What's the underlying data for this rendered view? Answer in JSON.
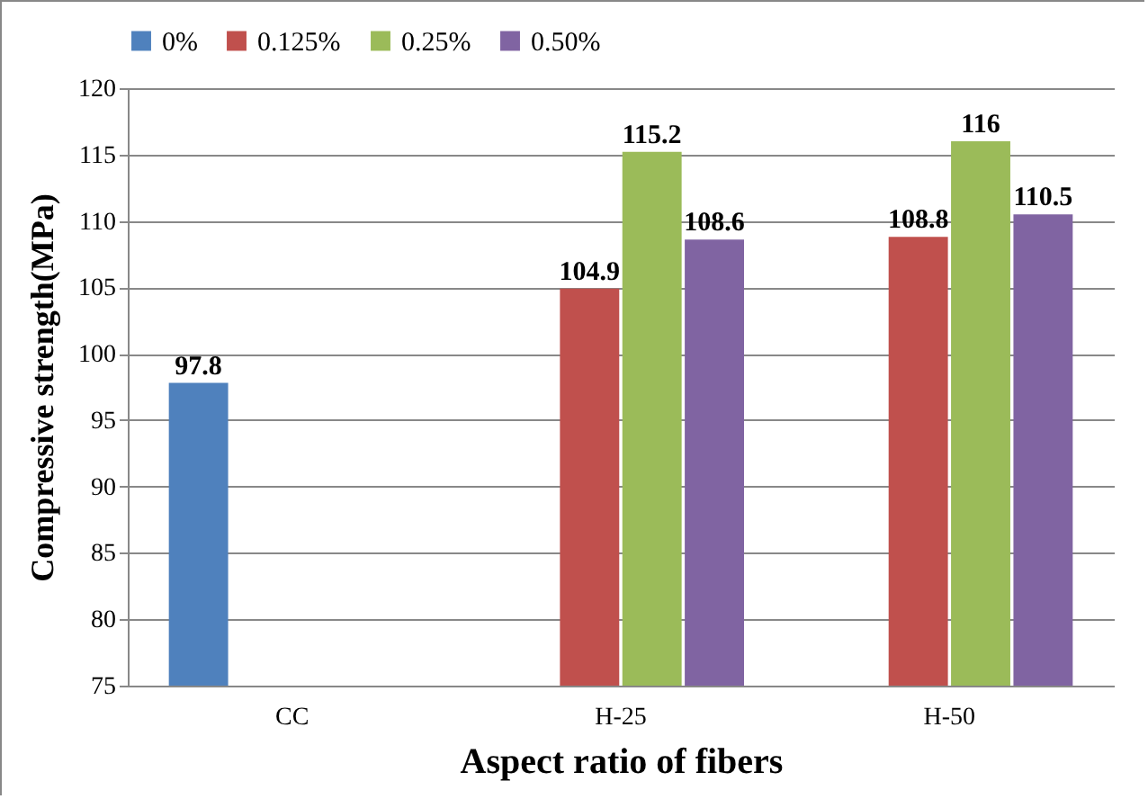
{
  "chart_data": {
    "type": "bar",
    "xlabel": "Aspect ratio of fibers",
    "ylabel": "Compressive strength(MPa)",
    "categories": [
      "CC",
      "H-25",
      "H-50"
    ],
    "series": [
      {
        "name": "0%",
        "color": "#4f81bd",
        "values": [
          97.8,
          null,
          null
        ]
      },
      {
        "name": "0.125%",
        "color": "#c0504d",
        "values": [
          null,
          104.9,
          108.8
        ]
      },
      {
        "name": "0.25%",
        "color": "#9bbb59",
        "values": [
          null,
          115.2,
          116
        ]
      },
      {
        "name": "0.50%",
        "color": "#8064a2",
        "values": [
          null,
          108.6,
          110.5
        ]
      }
    ],
    "ylim": [
      75,
      120
    ],
    "yticks": [
      75,
      80,
      85,
      90,
      95,
      100,
      105,
      110,
      115,
      120
    ],
    "grid": "y",
    "legend": "top",
    "data_labels": true
  }
}
